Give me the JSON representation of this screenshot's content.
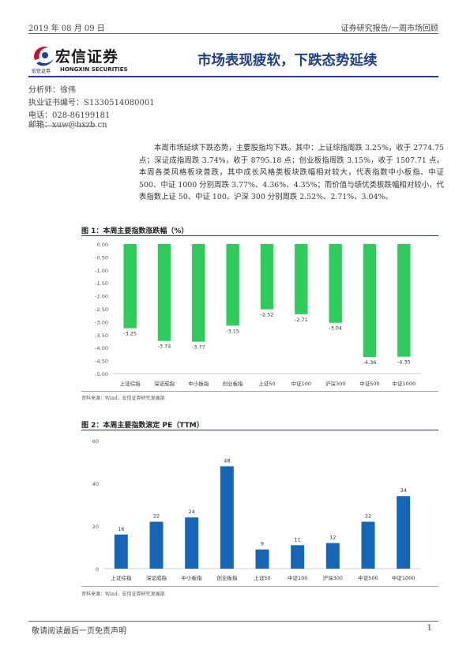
{
  "header": {
    "date": "2019 年 08 月 09 日",
    "report_type": "证券研究报告/一周市场回顾"
  },
  "logo": {
    "name": "宏信证券",
    "sub_cn": "宏信证券",
    "sub_en": "HONGXIN SECURITIES",
    "brand_color": "#c8102e"
  },
  "report_title": "市场表现疲软，下跌态势延续",
  "analyst": {
    "name": "分析师：徐伟",
    "license": "执业证书编号：S1330514080001",
    "phone": "电话：028-86199181",
    "email": "邮箱：xuw@hxzb.cn"
  },
  "body": "本周市场延续下跌态势，主要股指均下跌。其中：上证综指周跌 3.25%，收于 2774.75 点；深证成指周跌 3.74%，收于 8795.18 点；创业板指周跌 3.15%，收于 1507.71 点。本周各类风格板块普跌，其中成长风格类板块跌幅相对较大，代表指数中小板指、中证 500、中证 1000 分别周跌 3.77%、4.36%、4.35%；而价值与绩优类板跌幅相对较小，代表指数上证 50、中证 100、沪深 300 分别周跌 2.52%、2.71%、3.04%。",
  "figure1": {
    "title": "图 1：本周主要指数涨跌幅（%）",
    "source": "资料来源：Wind、宏信证券研究发展部"
  },
  "figure2": {
    "title": "图 2：本周主要指数滚定 PE（TTM）",
    "source": "资料来源：Wind、宏信证券研究发展部"
  },
  "chart_data": [
    {
      "type": "bar",
      "categories": [
        "上证综指",
        "深证成指",
        "中小板指",
        "创业板指",
        "上证50",
        "中证100",
        "沪深300",
        "中证500",
        "中证1000"
      ],
      "values": [
        -3.25,
        -3.74,
        -3.77,
        -3.15,
        -2.52,
        -2.71,
        -3.04,
        -4.36,
        -4.35
      ],
      "value_labels": [
        "-3.25",
        "-3.74",
        "-3.77",
        "-3.15",
        "-2.52",
        "-2.71",
        "-3.04",
        "-4.36",
        "-4.35"
      ],
      "yticks": [
        "0.00",
        "-0.50",
        "-1.00",
        "-1.50",
        "-2.00",
        "-2.50",
        "-3.00",
        "-3.50",
        "-4.00",
        "-4.50",
        "-5.00"
      ],
      "ylim": [
        -5,
        0
      ],
      "bar_color": "#2ecc5b",
      "grid": false
    },
    {
      "type": "bar",
      "categories": [
        "上证综指",
        "深证成指",
        "中小板指",
        "创业板指",
        "上证50",
        "中证100",
        "沪深300",
        "中证500",
        "中证1000"
      ],
      "values": [
        16,
        22,
        24,
        48,
        9,
        11,
        12,
        22,
        34
      ],
      "value_labels": [
        "16",
        "22",
        "24",
        "48",
        "9",
        "11",
        "12",
        "22",
        "34"
      ],
      "yticks": [
        "0",
        "20",
        "40",
        "60"
      ],
      "ylim": [
        0,
        60
      ],
      "bar_color": "#1565b8",
      "grid": false
    }
  ],
  "footer": {
    "disclaimer": "敬请阅读最后一页免责声明",
    "page": "1"
  }
}
